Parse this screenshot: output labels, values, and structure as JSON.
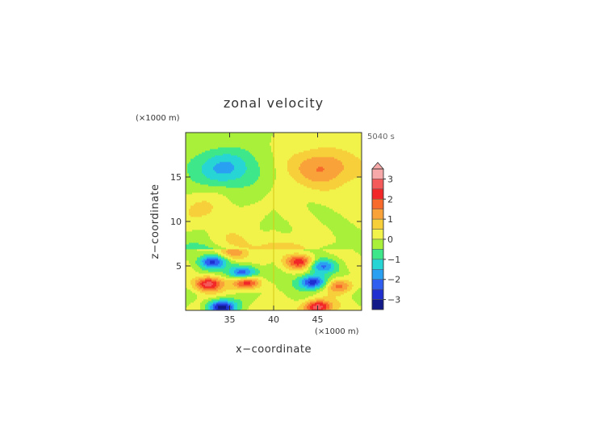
{
  "chart_data": {
    "type": "heatmap",
    "title": "zonal velocity",
    "time_label": "5040 s",
    "xlabel": "x−coordinate",
    "ylabel": "z−coordinate",
    "x_unit": "(×1000 m)",
    "y_unit": "(×1000 m)",
    "xlim": [
      30,
      50
    ],
    "ylim": [
      0,
      20
    ],
    "x_ticks": [
      {
        "value": 35,
        "label": "35"
      },
      {
        "value": 40,
        "label": "40"
      },
      {
        "value": 45,
        "label": "45"
      }
    ],
    "y_ticks": [
      {
        "value": 5,
        "label": "5"
      },
      {
        "value": 10,
        "label": "10"
      },
      {
        "value": 15,
        "label": "15"
      }
    ],
    "colorbar": {
      "range": [
        -3.5,
        3.5
      ],
      "ticks": [
        {
          "value": 3,
          "label": "3"
        },
        {
          "value": 2,
          "label": "2"
        },
        {
          "value": 1,
          "label": "1"
        },
        {
          "value": 0,
          "label": "0"
        },
        {
          "value": -1,
          "label": "−1"
        },
        {
          "value": -2,
          "label": "−2"
        },
        {
          "value": -3,
          "label": "−3"
        }
      ],
      "levels": [
        {
          "lo": 3.0,
          "hi": 3.5,
          "color": "#f7a8a8"
        },
        {
          "lo": 2.5,
          "hi": 3.0,
          "color": "#f45a5a"
        },
        {
          "lo": 2.0,
          "hi": 2.5,
          "color": "#f22727"
        },
        {
          "lo": 1.5,
          "hi": 2.0,
          "color": "#f76a2b"
        },
        {
          "lo": 1.0,
          "hi": 1.5,
          "color": "#f9a23a"
        },
        {
          "lo": 0.5,
          "hi": 1.0,
          "color": "#f6cf3a"
        },
        {
          "lo": 0.0,
          "hi": 0.5,
          "color": "#f1f24a"
        },
        {
          "lo": -0.5,
          "hi": 0.0,
          "color": "#a9f03a"
        },
        {
          "lo": -1.0,
          "hi": -0.5,
          "color": "#3ee88a"
        },
        {
          "lo": -1.5,
          "hi": -1.0,
          "color": "#28d5d5"
        },
        {
          "lo": -2.0,
          "hi": -1.5,
          "color": "#2aa0f2"
        },
        {
          "lo": -2.5,
          "hi": -2.0,
          "color": "#2f5ef0"
        },
        {
          "lo": -3.0,
          "hi": -2.5,
          "color": "#1f2fd0"
        },
        {
          "lo": -3.5,
          "hi": -3.0,
          "color": "#121a8a"
        }
      ],
      "overflow_arrow": "top"
    },
    "field_features": [
      {
        "x": 34.5,
        "z": 16.0,
        "value": -1.3
      },
      {
        "x": 45.5,
        "z": 16.0,
        "value": 1.2
      },
      {
        "x": 32.0,
        "z": 11.5,
        "value": 0.6
      },
      {
        "x": 35.5,
        "z": 6.5,
        "value": 1.6
      },
      {
        "x": 33.0,
        "z": 5.5,
        "value": -2.6
      },
      {
        "x": 36.5,
        "z": 4.2,
        "value": -2.8
      },
      {
        "x": 32.5,
        "z": 3.0,
        "value": 2.9
      },
      {
        "x": 37.0,
        "z": 3.2,
        "value": 2.6
      },
      {
        "x": 43.0,
        "z": 5.5,
        "value": 2.3
      },
      {
        "x": 45.5,
        "z": 5.0,
        "value": -2.0
      },
      {
        "x": 44.5,
        "z": 3.2,
        "value": -3.0
      },
      {
        "x": 47.5,
        "z": 2.8,
        "value": 1.8
      },
      {
        "x": 34.0,
        "z": 0.4,
        "value": -3.1
      },
      {
        "x": 45.0,
        "z": 0.4,
        "value": 3.1
      }
    ]
  }
}
